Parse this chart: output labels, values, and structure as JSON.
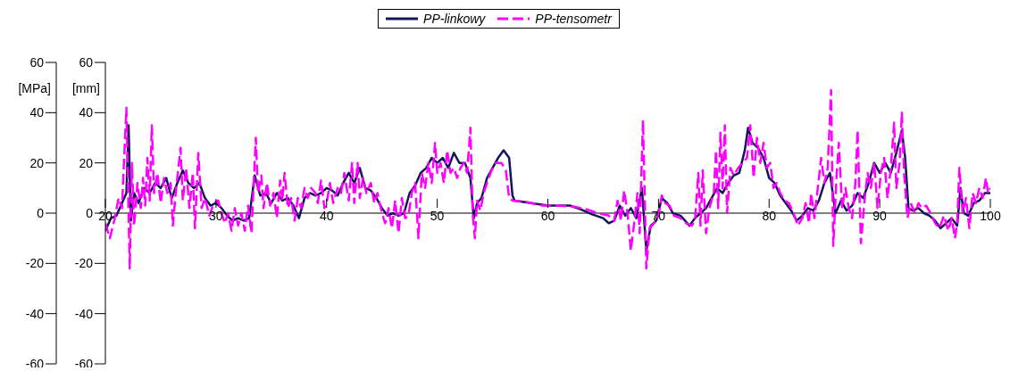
{
  "chart_data": {
    "type": "line",
    "ylabel": "[MPa]",
    "y2label": "[mm]",
    "xlim": [
      20,
      100
    ],
    "xticks": [
      20,
      30,
      40,
      50,
      60,
      70,
      80,
      90,
      100
    ],
    "ylim": [
      -60,
      60
    ],
    "yticks": [
      -60,
      -40,
      -20,
      0,
      20,
      40,
      60
    ],
    "y2lim": [
      -60,
      60
    ],
    "y2ticks": [
      -60,
      -40,
      -20,
      0,
      20,
      40,
      60
    ],
    "grid": false,
    "legend": "top",
    "marker": "none",
    "series": [
      {
        "name": "PP-linkowy",
        "color": "#14145a",
        "line_style": "solid",
        "x": [
          20,
          20.5,
          21,
          21.5,
          21.9,
          22.1,
          22.3,
          22.6,
          23,
          23.5,
          24,
          24.5,
          25,
          25.5,
          26,
          26.5,
          27,
          27.5,
          28,
          28.5,
          29,
          29.5,
          30,
          30.5,
          31,
          31.5,
          32,
          32.5,
          33,
          33.5,
          34,
          34.5,
          35,
          35.5,
          36,
          36.5,
          37,
          37.5,
          38,
          38.5,
          39,
          39.5,
          40,
          40.5,
          41,
          41.5,
          42,
          42.5,
          43,
          43.5,
          44,
          44.5,
          45,
          45.5,
          46,
          46.5,
          47,
          47.5,
          48,
          48.5,
          49,
          49.5,
          50,
          50.5,
          51,
          51.5,
          52,
          52.5,
          53,
          53.3,
          53.6,
          54,
          54.5,
          55,
          55.5,
          56,
          56.5,
          56.8,
          57,
          58.5,
          60,
          62,
          63,
          64,
          65,
          65.5,
          66,
          66.5,
          67,
          67.5,
          68,
          68.5,
          68.9,
          69.3,
          69.8,
          70.3,
          70.8,
          71.3,
          72,
          72.8,
          73.3,
          73.8,
          74.3,
          74.8,
          75.3,
          75.8,
          76.3,
          76.8,
          77.3,
          77.8,
          78.1,
          78.5,
          79,
          79.5,
          80,
          80.5,
          81,
          81.5,
          82,
          82.5,
          83,
          83.5,
          84,
          84.5,
          85,
          85.5,
          86,
          86.5,
          87,
          87.5,
          88,
          88.5,
          89,
          89.5,
          90,
          90.5,
          91,
          91.5,
          92,
          92.3,
          92.6,
          93,
          93.5,
          94,
          94.5,
          95,
          95.5,
          96,
          96.5,
          97,
          97.3,
          97.6,
          98,
          98.5,
          99,
          99.5,
          100
        ],
        "values": [
          -7,
          -2,
          -1,
          4,
          8,
          35,
          -3,
          8,
          4,
          10,
          8,
          12,
          10,
          14,
          6,
          12,
          17,
          12,
          10,
          12,
          6,
          3,
          4,
          2,
          -1,
          -3,
          -2,
          -3,
          -2,
          15,
          7,
          8,
          4,
          8,
          5,
          6,
          3,
          -2,
          6,
          8,
          7,
          8,
          10,
          9,
          7,
          12,
          16,
          12,
          18,
          10,
          9,
          6,
          2,
          -1,
          0,
          -1,
          0,
          8,
          11,
          16,
          18,
          22,
          20,
          22,
          18,
          24,
          20,
          20,
          14,
          -2,
          4,
          6,
          14,
          18,
          22,
          25,
          22,
          7,
          5,
          4,
          3,
          3,
          1.5,
          -0.5,
          -2,
          -4,
          -3,
          3,
          -1,
          2,
          -2,
          10,
          -15,
          -5,
          -3,
          6,
          4,
          0,
          -1,
          -5,
          -2,
          0,
          2,
          6,
          10,
          8,
          12,
          15,
          16,
          25,
          34,
          28,
          26,
          22,
          14,
          12,
          7,
          4,
          1,
          -3,
          -1,
          2,
          1,
          5,
          12,
          16,
          0,
          5,
          1,
          3,
          8,
          6,
          12,
          20,
          16,
          20,
          16,
          24,
          33,
          22,
          2,
          1,
          2,
          0,
          -1,
          -3,
          -6,
          -4,
          -2,
          -5,
          10,
          0,
          -1,
          4,
          5,
          8,
          8
        ]
      },
      {
        "name": "PP-tensometr",
        "color": "#ff00ff",
        "line_style": "dashed",
        "x": [
          20,
          20.4,
          20.8,
          21.2,
          21.5,
          21.9,
          22.2,
          22.4,
          22.6,
          22.9,
          23.2,
          23.4,
          23.6,
          23.8,
          24,
          24.2,
          24.4,
          24.7,
          25,
          25.3,
          25.6,
          25.9,
          26.1,
          26.4,
          26.8,
          27,
          27.3,
          27.6,
          27.9,
          28.1,
          28.4,
          28.7,
          29,
          29.4,
          29.8,
          30.2,
          30.5,
          30.8,
          31.1,
          31.4,
          31.7,
          32,
          32.3,
          32.6,
          32.9,
          33.2,
          33.6,
          33.8,
          34.1,
          34.3,
          34.6,
          34.9,
          35.2,
          35.5,
          35.8,
          36,
          36.2,
          36.5,
          36.8,
          37.1,
          37.4,
          37.7,
          38,
          38.3,
          38.6,
          39,
          39.2,
          39.5,
          39.8,
          40,
          40.3,
          40.6,
          41,
          41.3,
          41.6,
          42,
          42.3,
          42.5,
          42.8,
          43,
          43.3,
          43.6,
          44,
          44.3,
          44.6,
          45,
          45.3,
          45.6,
          45.9,
          46.2,
          46.5,
          46.8,
          47.1,
          47.4,
          47.7,
          48,
          48.3,
          48.6,
          48.9,
          49.2,
          49.5,
          49.8,
          50,
          50.3,
          50.6,
          50.9,
          51.2,
          51.5,
          51.8,
          52.1,
          52.4,
          52.7,
          53,
          53.2,
          53.4,
          53.6,
          53.9,
          54.2,
          54.5,
          54.9,
          55.3,
          55.8,
          56.2,
          56.5,
          56.8,
          58,
          59.5,
          61,
          62.5,
          63.5,
          64.5,
          65.5,
          66,
          66.3,
          66.6,
          66.9,
          67.2,
          67.5,
          67.8,
          68.1,
          68.3,
          68.6,
          68.9,
          69.2,
          69.6,
          70,
          70.3,
          70.6,
          71,
          71.4,
          72,
          72.5,
          73,
          73.3,
          73.6,
          73.8,
          74,
          74.3,
          74.6,
          75,
          75.2,
          75.4,
          75.6,
          75.8,
          76,
          76.2,
          76.5,
          76.8,
          77.2,
          77.6,
          78,
          78.3,
          78.6,
          78.9,
          79.2,
          79.5,
          79.8,
          80.1,
          80.4,
          80.7,
          81,
          81.4,
          81.8,
          82.2,
          82.6,
          83,
          83.3,
          83.6,
          83.8,
          84.1,
          84.4,
          84.7,
          85,
          85.3,
          85.6,
          85.8,
          86.1,
          86.3,
          86.6,
          86.9,
          87.2,
          87.5,
          87.8,
          88,
          88.3,
          88.6,
          88.9,
          89.2,
          89.5,
          89.8,
          90.1,
          90.4,
          90.7,
          91,
          91.3,
          91.5,
          91.8,
          92,
          92.2,
          92.5,
          92.8,
          93.2,
          93.5,
          93.8,
          94.2,
          94.6,
          95,
          95.4,
          95.8,
          96.2,
          96.5,
          96.8,
          97,
          97.2,
          97.5,
          97.8,
          98.1,
          98.4,
          98.7,
          99,
          99.3,
          99.6,
          99.8,
          100
        ],
        "values": [
          -4,
          -10,
          -3,
          6,
          2,
          42,
          -22,
          20,
          -5,
          12,
          2,
          14,
          3,
          22,
          5,
          35,
          8,
          16,
          4,
          14,
          8,
          12,
          -5,
          10,
          26,
          5,
          18,
          2,
          16,
          -6,
          24,
          2,
          6,
          -1,
          4,
          5,
          0,
          -4,
          0,
          -7,
          2,
          -5,
          0,
          -7,
          3,
          -8,
          30,
          8,
          15,
          2,
          12,
          3,
          8,
          -2,
          13,
          5,
          16,
          2,
          6,
          -3,
          6,
          2,
          10,
          6,
          10,
          8,
          4,
          13,
          2,
          4,
          12,
          4,
          10,
          8,
          16,
          5,
          20,
          4,
          20,
          6,
          14,
          8,
          12,
          4,
          8,
          0,
          -4,
          2,
          -6,
          5,
          -8,
          6,
          -2,
          -1,
          8,
          12,
          -10,
          16,
          10,
          20,
          12,
          28,
          16,
          20,
          12,
          25,
          16,
          18,
          14,
          18,
          20,
          16,
          34,
          0,
          -10,
          5,
          1,
          8,
          12,
          17,
          20,
          20,
          17,
          6,
          5,
          4.5,
          3,
          3,
          2.5,
          1.5,
          0,
          -1,
          -3,
          5,
          -3,
          9,
          0,
          -15,
          -4,
          8,
          -8,
          37,
          -22,
          -6,
          -4,
          -1,
          7,
          4,
          3,
          -1,
          -2,
          -4,
          -5,
          -3,
          16,
          -5,
          17,
          -8,
          2,
          8,
          25,
          2,
          32,
          10,
          35,
          0,
          18,
          15,
          18,
          20,
          22,
          35,
          14,
          30,
          20,
          28,
          18,
          20,
          10,
          12,
          8,
          5,
          4,
          0,
          -5,
          -2,
          4,
          -4,
          8,
          -2,
          10,
          22,
          12,
          18,
          49,
          -13,
          15,
          28,
          2,
          10,
          2,
          -2,
          12,
          33,
          -12,
          4,
          16,
          10,
          20,
          2,
          16,
          22,
          6,
          18,
          36,
          10,
          20,
          40,
          16,
          -2,
          4,
          0,
          4,
          2,
          3,
          0,
          -4,
          -6,
          -1,
          -7,
          -2,
          -10,
          -4,
          18,
          0,
          6,
          -6,
          8,
          4,
          10,
          6,
          14,
          8,
          10
        ]
      }
    ]
  }
}
